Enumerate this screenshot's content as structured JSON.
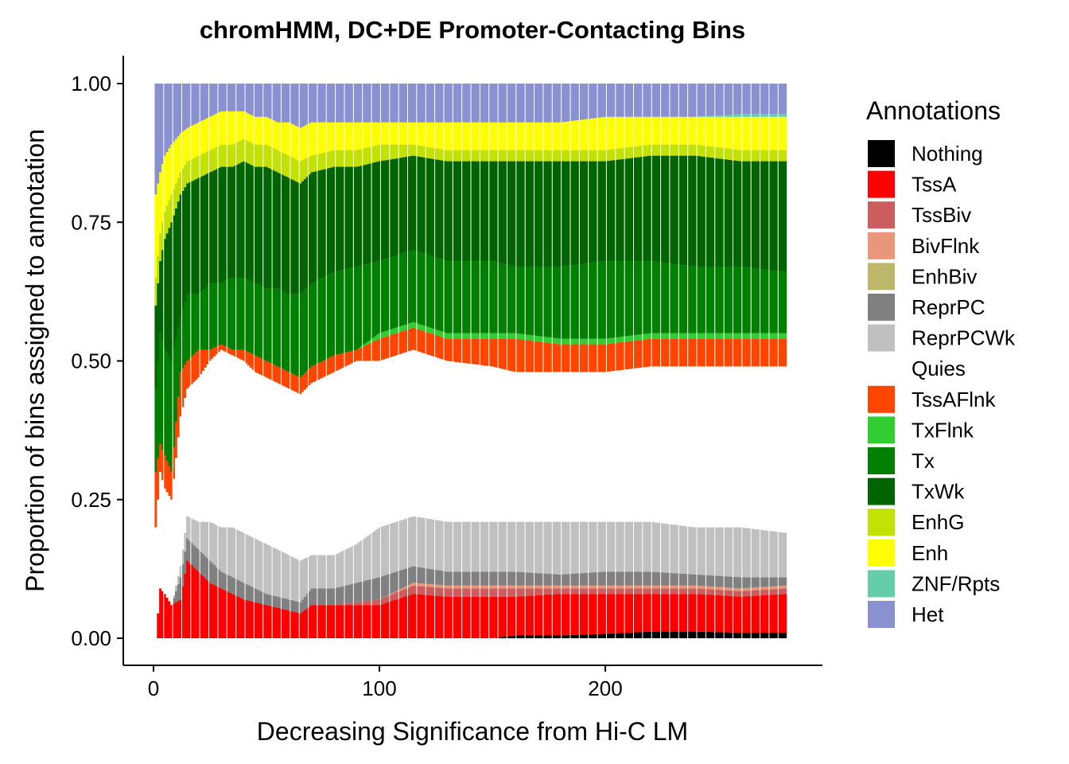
{
  "chart_data": {
    "type": "bar",
    "stacked": true,
    "title": "chromHMM, DC+DE Promoter-Contacting Bins",
    "xlabel": "Decreasing Significance from Hi-C LM",
    "ylabel": "Proportion of bins assigned to annotation",
    "xlim": [
      0,
      281
    ],
    "ylim": [
      0,
      1
    ],
    "xticks": [
      0,
      100,
      200
    ],
    "xtick_labels": [
      "0",
      "100",
      "200"
    ],
    "yticks": [
      0,
      0.25,
      0.5,
      0.75,
      1
    ],
    "ytick_labels": [
      "0.00",
      "0.25",
      "0.50",
      "0.75",
      "1.00"
    ],
    "grid": false,
    "legend_position": "right",
    "legend_title": "Annotations",
    "stack_order": [
      "Nothing",
      "TssA",
      "TssBiv",
      "BivFlnk",
      "EnhBiv",
      "ReprPC",
      "ReprPCWk",
      "Quies",
      "TssAFlnk",
      "TxFlnk",
      "Tx",
      "TxWk",
      "EnhG",
      "Enh",
      "ZNF/Rpts",
      "Het"
    ],
    "series": [
      {
        "name": "Nothing",
        "color": "#000000"
      },
      {
        "name": "TssA",
        "color": "#FF0000"
      },
      {
        "name": "TssBiv",
        "color": "#CD5C5C"
      },
      {
        "name": "BivFlnk",
        "color": "#E9967A"
      },
      {
        "name": "EnhBiv",
        "color": "#BDB76B"
      },
      {
        "name": "ReprPC",
        "color": "#808080"
      },
      {
        "name": "ReprPCWk",
        "color": "#C0C0C0"
      },
      {
        "name": "Quies",
        "color": "#FFFFFF"
      },
      {
        "name": "TssAFlnk",
        "color": "#FF4500"
      },
      {
        "name": "TxFlnk",
        "color": "#32CD32"
      },
      {
        "name": "Tx",
        "color": "#008000"
      },
      {
        "name": "TxWk",
        "color": "#006400"
      },
      {
        "name": "EnhG",
        "color": "#C2E105"
      },
      {
        "name": "Enh",
        "color": "#FFFF00"
      },
      {
        "name": "ZNF/Rpts",
        "color": "#66CDAA"
      },
      {
        "name": "Het",
        "color": "#8A91D0"
      }
    ],
    "cumulative_boundaries": {
      "description": "Approximate upper edge of each stacked layer (cumulative proportion) at selected x positions",
      "x": [
        1,
        3,
        5,
        8,
        12,
        15,
        20,
        25,
        30,
        35,
        40,
        45,
        50,
        55,
        60,
        65,
        70,
        80,
        90,
        100,
        115,
        130,
        150,
        160,
        180,
        200,
        220,
        240,
        260,
        280
      ],
      "Nothing": [
        0,
        0,
        0,
        0,
        0,
        0,
        0,
        0,
        0,
        0,
        0,
        0,
        0,
        0,
        0,
        0,
        0,
        0,
        0,
        0,
        0,
        0,
        0,
        0.005,
        0.005,
        0.008,
        0.012,
        0.012,
        0.01,
        0.01
      ],
      "TssA": [
        0,
        0.09,
        0.08,
        0.06,
        0.07,
        0.14,
        0.12,
        0.1,
        0.09,
        0.08,
        0.07,
        0.065,
        0.06,
        0.055,
        0.05,
        0.045,
        0.06,
        0.06,
        0.06,
        0.06,
        0.08,
        0.075,
        0.075,
        0.075,
        0.08,
        0.08,
        0.08,
        0.08,
        0.075,
        0.08
      ],
      "TssBiv": [
        0,
        0.09,
        0.08,
        0.06,
        0.07,
        0.14,
        0.12,
        0.1,
        0.09,
        0.08,
        0.07,
        0.065,
        0.06,
        0.055,
        0.05,
        0.045,
        0.06,
        0.06,
        0.065,
        0.07,
        0.095,
        0.09,
        0.09,
        0.09,
        0.09,
        0.09,
        0.09,
        0.09,
        0.085,
        0.09
      ],
      "BivFlnk": [
        0,
        0.09,
        0.08,
        0.06,
        0.07,
        0.14,
        0.12,
        0.1,
        0.09,
        0.08,
        0.07,
        0.065,
        0.06,
        0.055,
        0.05,
        0.045,
        0.06,
        0.06,
        0.065,
        0.07,
        0.1,
        0.095,
        0.095,
        0.095,
        0.095,
        0.095,
        0.095,
        0.095,
        0.09,
        0.095
      ],
      "EnhBiv": [
        0,
        0.09,
        0.08,
        0.06,
        0.07,
        0.14,
        0.12,
        0.1,
        0.09,
        0.08,
        0.07,
        0.065,
        0.06,
        0.055,
        0.05,
        0.045,
        0.06,
        0.06,
        0.065,
        0.07,
        0.1,
        0.095,
        0.095,
        0.095,
        0.095,
        0.095,
        0.095,
        0.095,
        0.09,
        0.095
      ],
      "ReprPC": [
        0,
        0.09,
        0.08,
        0.06,
        0.11,
        0.18,
        0.16,
        0.14,
        0.12,
        0.11,
        0.1,
        0.09,
        0.08,
        0.075,
        0.07,
        0.065,
        0.09,
        0.09,
        0.1,
        0.11,
        0.13,
        0.12,
        0.12,
        0.12,
        0.115,
        0.12,
        0.12,
        0.115,
        0.11,
        0.11
      ],
      "ReprPCWk": [
        0,
        0.09,
        0.08,
        0.06,
        0.13,
        0.22,
        0.21,
        0.21,
        0.2,
        0.2,
        0.19,
        0.18,
        0.17,
        0.16,
        0.15,
        0.14,
        0.15,
        0.15,
        0.17,
        0.2,
        0.22,
        0.21,
        0.21,
        0.21,
        0.21,
        0.21,
        0.21,
        0.2,
        0.2,
        0.19
      ],
      "Quies": [
        0.2,
        0.3,
        0.27,
        0.25,
        0.4,
        0.45,
        0.47,
        0.5,
        0.52,
        0.51,
        0.5,
        0.48,
        0.47,
        0.46,
        0.45,
        0.44,
        0.46,
        0.48,
        0.5,
        0.5,
        0.52,
        0.5,
        0.49,
        0.48,
        0.48,
        0.48,
        0.49,
        0.49,
        0.49,
        0.49
      ],
      "TssAFlnk": [
        0.3,
        0.35,
        0.33,
        0.3,
        0.48,
        0.5,
        0.52,
        0.52,
        0.53,
        0.52,
        0.52,
        0.51,
        0.5,
        0.49,
        0.48,
        0.47,
        0.49,
        0.51,
        0.52,
        0.54,
        0.56,
        0.54,
        0.54,
        0.54,
        0.53,
        0.53,
        0.54,
        0.54,
        0.54,
        0.54
      ],
      "TxFlnk": [
        0.3,
        0.35,
        0.33,
        0.3,
        0.48,
        0.5,
        0.52,
        0.52,
        0.53,
        0.52,
        0.52,
        0.51,
        0.5,
        0.49,
        0.48,
        0.47,
        0.49,
        0.51,
        0.52,
        0.55,
        0.57,
        0.55,
        0.55,
        0.55,
        0.54,
        0.54,
        0.55,
        0.55,
        0.55,
        0.55
      ],
      "Tx": [
        0.45,
        0.55,
        0.52,
        0.5,
        0.58,
        0.62,
        0.62,
        0.64,
        0.64,
        0.65,
        0.65,
        0.64,
        0.63,
        0.63,
        0.62,
        0.62,
        0.64,
        0.66,
        0.67,
        0.68,
        0.7,
        0.68,
        0.68,
        0.67,
        0.67,
        0.68,
        0.68,
        0.67,
        0.67,
        0.66
      ],
      "TxWk": [
        0.6,
        0.68,
        0.72,
        0.75,
        0.8,
        0.82,
        0.83,
        0.84,
        0.85,
        0.85,
        0.86,
        0.85,
        0.85,
        0.84,
        0.83,
        0.82,
        0.84,
        0.85,
        0.85,
        0.86,
        0.87,
        0.86,
        0.86,
        0.86,
        0.86,
        0.86,
        0.87,
        0.87,
        0.86,
        0.86
      ],
      "EnhG": [
        0.65,
        0.73,
        0.77,
        0.8,
        0.84,
        0.86,
        0.87,
        0.88,
        0.89,
        0.89,
        0.9,
        0.89,
        0.89,
        0.88,
        0.87,
        0.86,
        0.87,
        0.88,
        0.88,
        0.89,
        0.89,
        0.88,
        0.88,
        0.88,
        0.88,
        0.88,
        0.89,
        0.89,
        0.88,
        0.88
      ],
      "Enh": [
        0.8,
        0.84,
        0.87,
        0.89,
        0.91,
        0.92,
        0.93,
        0.94,
        0.95,
        0.95,
        0.95,
        0.94,
        0.94,
        0.93,
        0.93,
        0.92,
        0.93,
        0.93,
        0.93,
        0.93,
        0.93,
        0.93,
        0.93,
        0.93,
        0.93,
        0.94,
        0.94,
        0.94,
        0.94,
        0.94
      ],
      "ZNF/Rpts": [
        0.8,
        0.84,
        0.87,
        0.89,
        0.91,
        0.92,
        0.93,
        0.94,
        0.95,
        0.95,
        0.95,
        0.94,
        0.94,
        0.93,
        0.93,
        0.92,
        0.93,
        0.93,
        0.93,
        0.93,
        0.93,
        0.93,
        0.93,
        0.93,
        0.93,
        0.94,
        0.94,
        0.94,
        0.945,
        0.945
      ],
      "Het": [
        1,
        1,
        1,
        1,
        1,
        1,
        1,
        1,
        1,
        1,
        1,
        1,
        1,
        1,
        1,
        1,
        1,
        1,
        1,
        1,
        1,
        1,
        1,
        1,
        1,
        1,
        1,
        1,
        1,
        1
      ]
    }
  }
}
